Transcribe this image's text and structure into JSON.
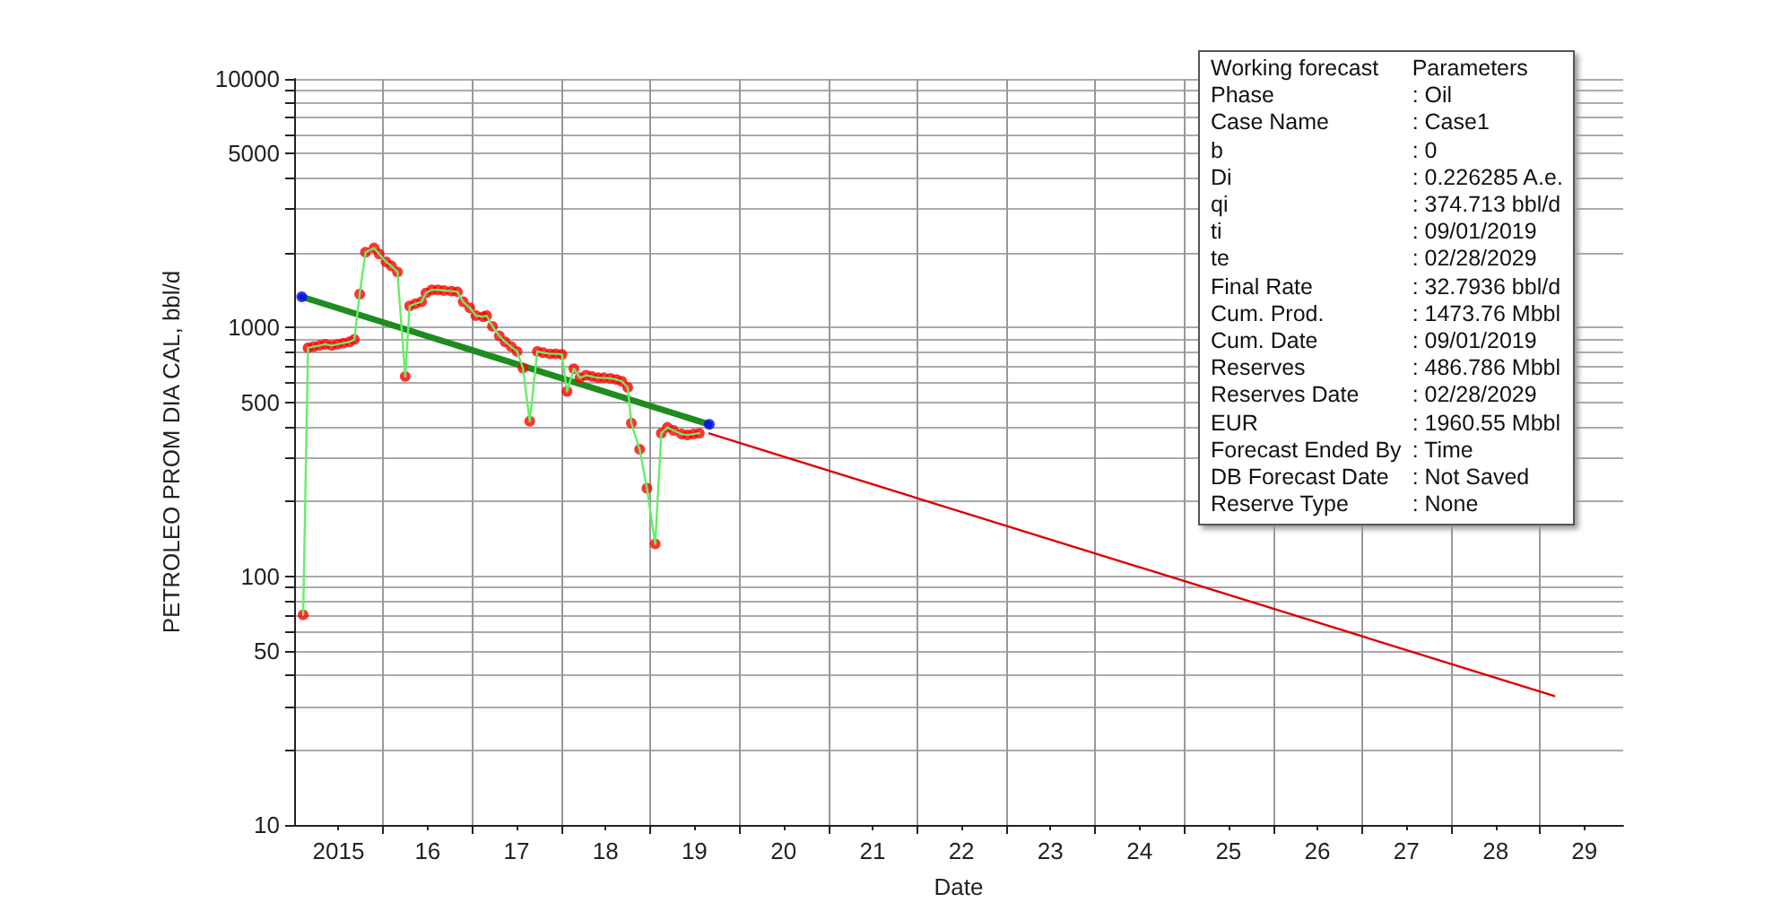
{
  "chart_data": {
    "type": "line",
    "xlabel": "Date",
    "ylabel": "PETROLEO PROM DIA CAL, bbl/d",
    "log": "y",
    "grid": true,
    "marker": "circle",
    "xlim": [
      "2015-01-01",
      "2029-12-08"
    ],
    "ylim": [
      10,
      10000
    ],
    "xticks": [
      {
        "value": "2015-07-02",
        "label": "2015"
      },
      {
        "value": "2016-07-02",
        "label": "16"
      },
      {
        "value": "2017-07-02",
        "label": "17"
      },
      {
        "value": "2018-07-02",
        "label": "18"
      },
      {
        "value": "2019-07-02",
        "label": "19"
      },
      {
        "value": "2020-07-02",
        "label": "20"
      },
      {
        "value": "2021-07-02",
        "label": "21"
      },
      {
        "value": "2022-07-02",
        "label": "22"
      },
      {
        "value": "2023-07-02",
        "label": "23"
      },
      {
        "value": "2024-07-02",
        "label": "24"
      },
      {
        "value": "2025-07-02",
        "label": "25"
      },
      {
        "value": "2026-07-02",
        "label": "26"
      },
      {
        "value": "2027-07-02",
        "label": "27"
      },
      {
        "value": "2028-07-02",
        "label": "28"
      },
      {
        "value": "2029-07-02",
        "label": "29"
      },
      {
        "value": "2016-01-01",
        "label": null
      },
      {
        "value": "2017-01-01",
        "label": null
      },
      {
        "value": "2018-01-01",
        "label": null
      },
      {
        "value": "2019-01-01",
        "label": null
      },
      {
        "value": "2020-01-01",
        "label": null
      },
      {
        "value": "2021-01-01",
        "label": null
      },
      {
        "value": "2022-01-01",
        "label": null
      },
      {
        "value": "2023-01-01",
        "label": null
      },
      {
        "value": "2024-01-01",
        "label": null
      },
      {
        "value": "2025-01-01",
        "label": null
      },
      {
        "value": "2026-01-01",
        "label": null
      },
      {
        "value": "2027-01-01",
        "label": null
      },
      {
        "value": "2028-01-01",
        "label": null
      },
      {
        "value": "2029-01-01",
        "label": null
      }
    ],
    "yticks": [
      10,
      {
        "value": 20,
        "label": null
      },
      {
        "value": 30,
        "label": null
      },
      {
        "value": 40,
        "label": null
      },
      50,
      {
        "value": 60,
        "label": null
      },
      {
        "value": 70,
        "label": null
      },
      {
        "value": 80,
        "label": null
      },
      {
        "value": 90,
        "label": null
      },
      100,
      {
        "value": 200,
        "label": null
      },
      {
        "value": 300,
        "label": null
      },
      {
        "value": 400,
        "label": null
      },
      500,
      {
        "value": 600,
        "label": null
      },
      {
        "value": 700,
        "label": null
      },
      {
        "value": 800,
        "label": null
      },
      {
        "value": 900,
        "label": null
      },
      1000,
      {
        "value": 2000,
        "label": null
      },
      {
        "value": 3000,
        "label": null
      },
      {
        "value": 4000,
        "label": null
      },
      5000,
      {
        "value": 6000,
        "label": null
      },
      {
        "value": 7000,
        "label": null
      },
      {
        "value": 8000,
        "label": null
      },
      {
        "value": 9000,
        "label": null
      },
      10000
    ],
    "series": [
      {
        "marker": "none",
        "color": "#66ee66",
        "x": [
          "2015-02-07",
          "2015-02-27",
          "2015-03-21",
          "2015-04-15",
          "2015-05-09",
          "2015-06-04",
          "2015-06-28",
          "2015-07-22",
          "2015-08-16",
          "2015-09-05",
          "2015-09-27",
          "2015-10-21",
          "2015-11-25",
          "2015-12-16",
          "2016-01-13",
          "2016-02-04",
          "2016-02-29",
          "2016-04-01",
          "2016-04-19",
          "2016-05-13",
          "2016-06-07",
          "2016-06-25",
          "2016-07-19",
          "2016-08-13",
          "2016-09-07",
          "2016-10-07",
          "2016-11-01",
          "2016-11-25",
          "2016-12-22",
          "2017-01-16",
          "2017-02-15",
          "2017-03-01",
          "2017-03-25",
          "2017-04-22",
          "2017-05-16",
          "2017-06-10",
          "2017-07-04",
          "2017-07-28",
          "2017-08-25",
          "2017-09-25",
          "2017-10-19",
          "2017-11-16",
          "2017-12-10",
          "2018-01-04",
          "2018-01-25",
          "2018-02-22",
          "2018-03-19",
          "2018-04-13",
          "2018-05-07",
          "2018-06-01",
          "2018-06-25",
          "2018-07-22",
          "2018-08-16",
          "2018-09-07",
          "2018-10-01",
          "2018-10-16",
          "2018-11-19",
          "2018-12-19",
          "2019-01-22",
          "2019-02-16",
          "2019-03-13",
          "2019-04-07",
          "2019-05-10",
          "2019-06-04",
          "2019-06-28",
          "2019-07-22"
        ],
        "values": [
          70,
          829,
          838,
          847,
          857,
          847,
          857,
          866,
          876,
          896,
          1364,
          2009,
          2089,
          1976,
          1839,
          1770,
          1673,
          636,
          1221,
          1248,
          1270,
          1379,
          1418,
          1418,
          1410,
          1402,
          1393,
          1270,
          1201,
          1117,
          1106,
          1117,
          1012,
          927,
          876,
          838,
          802,
          687,
          420,
          802,
          793,
          784,
          784,
          780,
          554,
          683,
          628,
          643,
          636,
          628,
          628,
          625,
          618,
          608,
          575,
          413,
          324,
          226,
          135,
          376,
          397,
          386,
          373,
          370,
          373,
          376
        ]
      },
      {
        "type": "scatter",
        "color": "#ff0000",
        "x": [
          "2015-02-07",
          "2015-02-27",
          "2015-03-21",
          "2015-04-15",
          "2015-05-09",
          "2015-06-04",
          "2015-06-28",
          "2015-07-22",
          "2015-08-16",
          "2015-09-05",
          "2015-09-27",
          "2015-10-21",
          "2015-11-25",
          "2015-12-16",
          "2016-01-13",
          "2016-02-04",
          "2016-02-29",
          "2016-04-01",
          "2016-04-19",
          "2016-05-13",
          "2016-06-07",
          "2016-06-25",
          "2016-07-19",
          "2016-08-13",
          "2016-09-07",
          "2016-10-07",
          "2016-11-01",
          "2016-11-25",
          "2016-12-22",
          "2017-01-16",
          "2017-02-15",
          "2017-03-01",
          "2017-03-25",
          "2017-04-22",
          "2017-05-16",
          "2017-06-10",
          "2017-07-04",
          "2017-07-28",
          "2017-08-25",
          "2017-09-25",
          "2017-10-19",
          "2017-11-16",
          "2017-12-10",
          "2018-01-04",
          "2018-01-25",
          "2018-02-22",
          "2018-03-19",
          "2018-04-13",
          "2018-05-07",
          "2018-06-01",
          "2018-06-25",
          "2018-07-22",
          "2018-08-16",
          "2018-09-07",
          "2018-10-01",
          "2018-10-16",
          "2018-11-19",
          "2018-12-19",
          "2019-01-22",
          "2019-02-16",
          "2019-03-13",
          "2019-04-07",
          "2019-05-10",
          "2019-06-04",
          "2019-06-28",
          "2019-07-22"
        ],
        "values": [
          70,
          829,
          838,
          847,
          857,
          847,
          857,
          866,
          876,
          896,
          1364,
          2009,
          2089,
          1976,
          1839,
          1770,
          1673,
          636,
          1221,
          1248,
          1270,
          1379,
          1418,
          1418,
          1410,
          1402,
          1393,
          1270,
          1201,
          1117,
          1106,
          1117,
          1012,
          927,
          876,
          838,
          802,
          687,
          420,
          802,
          793,
          784,
          784,
          780,
          554,
          683,
          628,
          643,
          636,
          628,
          628,
          625,
          618,
          608,
          575,
          413,
          324,
          226,
          135,
          376,
          397,
          386,
          373,
          370,
          373,
          376
        ]
      },
      {
        "marker": "none",
        "color": "#1e8c1e",
        "x": [
          "2015-02-01",
          "2019-09-01"
        ],
        "values": [
          1330,
          408
        ]
      },
      {
        "type": "scatter",
        "color": "#0000ff",
        "x": [
          "2015-02-01",
          "2019-09-01"
        ],
        "values": [
          1330,
          408
        ]
      },
      {
        "marker": "none",
        "color": "#dd0000",
        "x": [
          "2019-09-01",
          "2029-02-28"
        ],
        "values": [
          375,
          33
        ]
      }
    ],
    "annotations": [
      "Working forecast",
      "Parameters",
      "Phase",
      ": Oil",
      "Case Name",
      ": Case1",
      "b",
      ": 0",
      "Di",
      ": 0.226285 A.e.",
      "qi",
      ": 374.713 bbl/d",
      "ti",
      ": 09/01/2019",
      "te",
      ": 02/28/2029",
      "Final Rate",
      ": 32.7936 bbl/d",
      "Cum. Prod.",
      ": 1473.76 Mbbl",
      "Cum. Date",
      ": 09/01/2019",
      "Reserves",
      ": 486.786 Mbbl",
      "Reserves Date",
      ": 02/28/2029",
      "EUR",
      ": 1960.55 Mbbl",
      "Forecast Ended By",
      ": Time",
      "DB Forecast Date",
      ": Not Saved",
      "Reserve Type",
      ": None"
    ]
  }
}
